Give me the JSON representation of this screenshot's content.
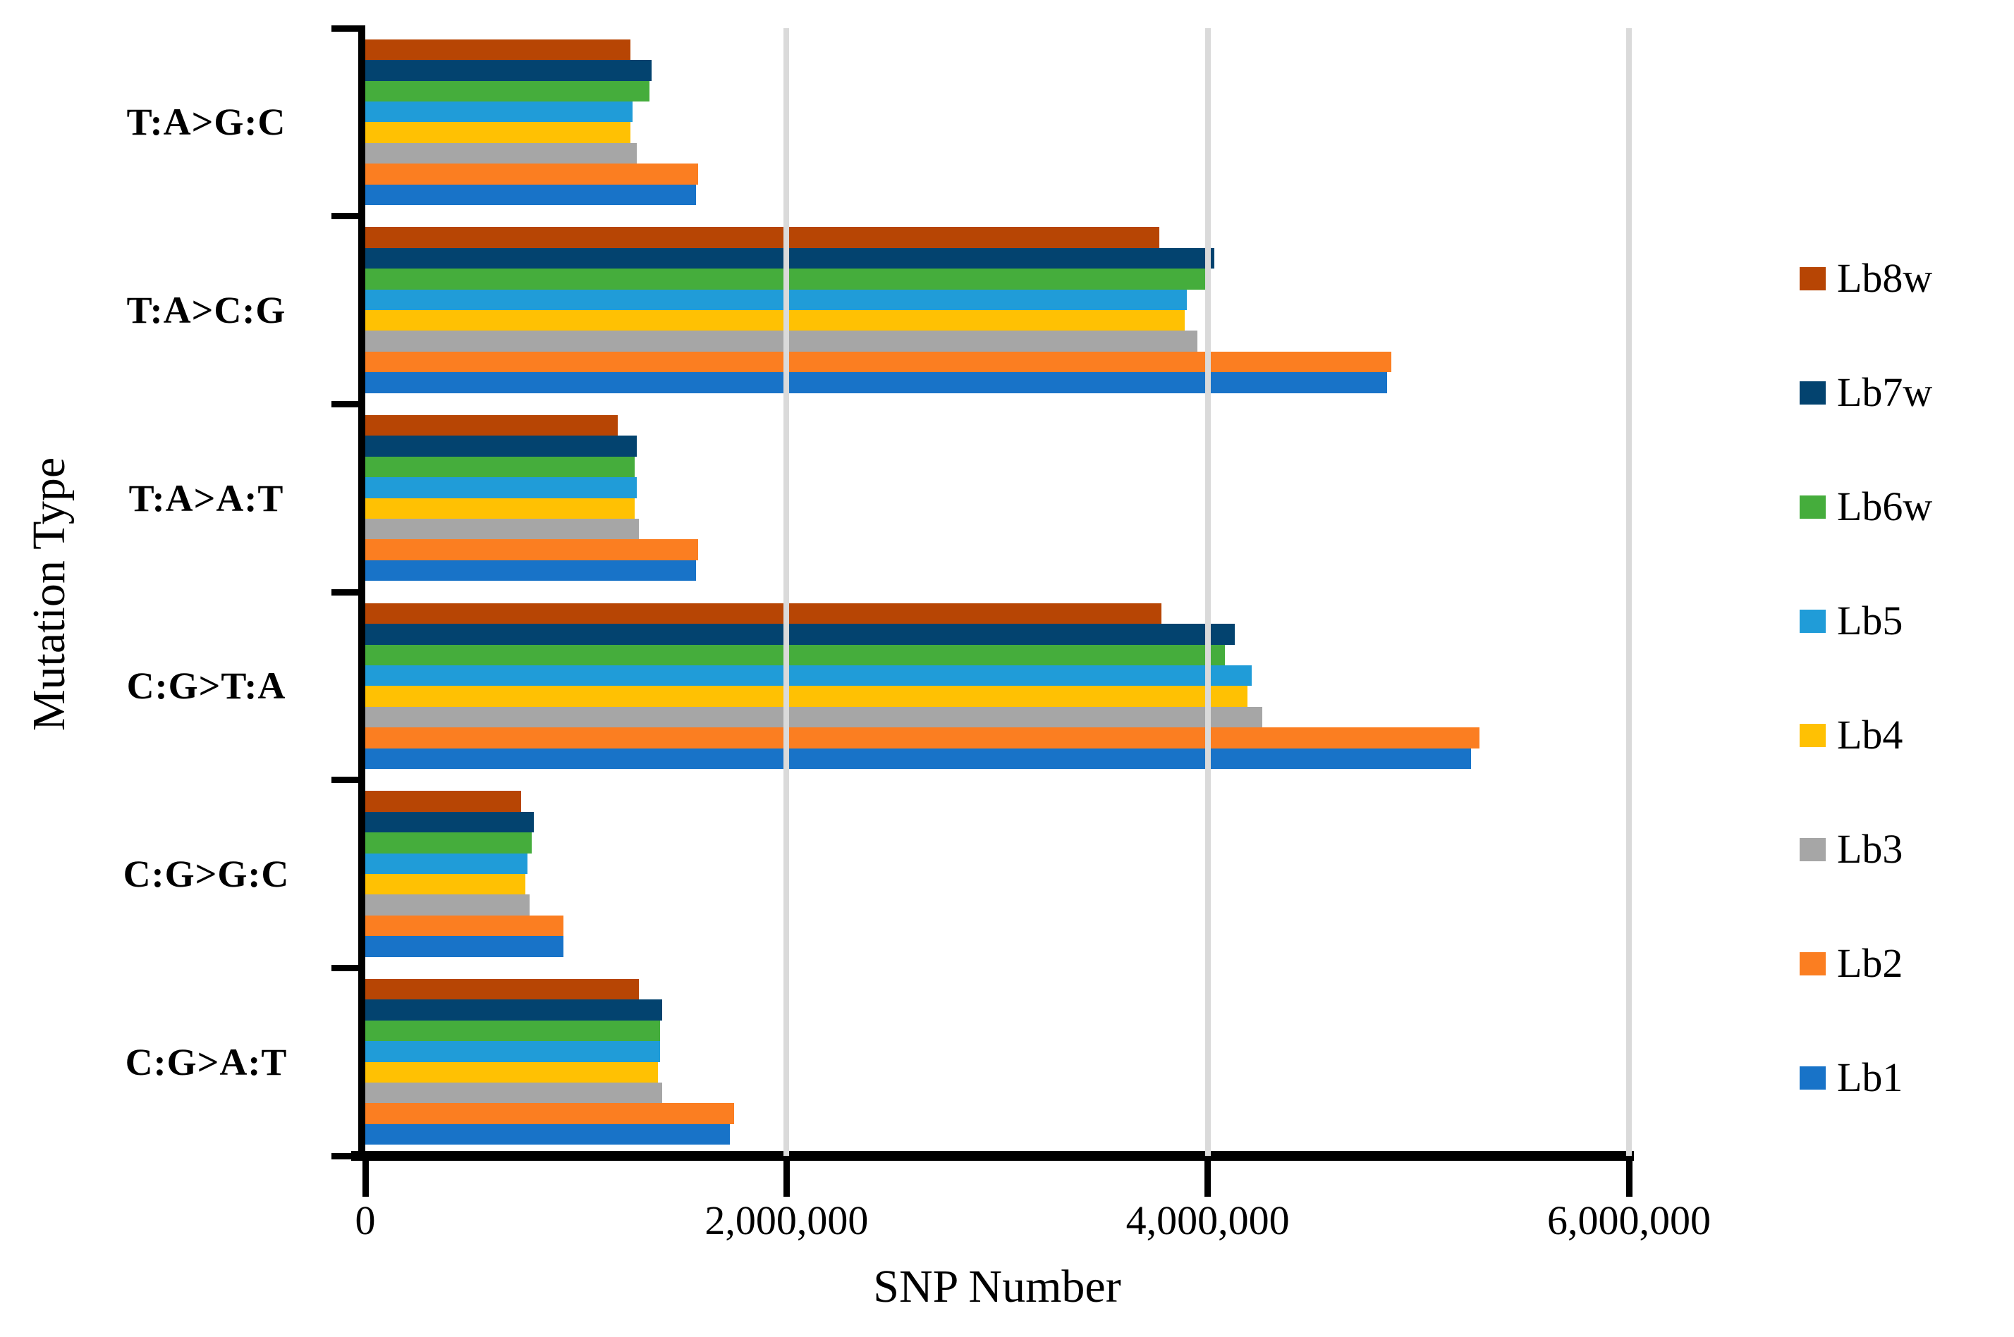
{
  "chart_data": {
    "type": "bar",
    "orientation": "horizontal",
    "title": "",
    "xlabel": "SNP Number",
    "ylabel": "Mutation Type",
    "categories": [
      "T:A&gt;G:C",
      "T:A&gt;C:G",
      "T:A&gt;A:T",
      "C:G&gt;T:A",
      "C:G&gt;G:C",
      "C:G&gt;A:T"
    ],
    "categories_plain": [
      "T:A>G:C",
      "T:A>C:G",
      "T:A>A:T",
      "C:G>T:A",
      "C:G>G:C",
      "C:G>A:T"
    ],
    "series": [
      {
        "name": "Lb8w",
        "color": "#b74504",
        "values": [
          1260000,
          3770000,
          1200000,
          3780000,
          740000,
          1300000
        ]
      },
      {
        "name": "Lb7w",
        "color": "#03436f",
        "values": [
          1360000,
          4030000,
          1290000,
          4130000,
          800000,
          1410000
        ]
      },
      {
        "name": "Lb6w",
        "color": "#45ad3c",
        "values": [
          1350000,
          4000000,
          1280000,
          4080000,
          790000,
          1400000
        ]
      },
      {
        "name": "Lb5",
        "color": "#209cd8",
        "values": [
          1270000,
          3900000,
          1290000,
          4210000,
          770000,
          1400000
        ]
      },
      {
        "name": "Lb4",
        "color": "#ffc103",
        "values": [
          1260000,
          3890000,
          1280000,
          4190000,
          760000,
          1390000
        ]
      },
      {
        "name": "Lb3",
        "color": "#a6a6a6",
        "values": [
          1290000,
          3950000,
          1300000,
          4260000,
          780000,
          1410000
        ]
      },
      {
        "name": "Lb2",
        "color": "#fb7e21",
        "values": [
          1580000,
          4870000,
          1580000,
          5290000,
          940000,
          1750000
        ]
      },
      {
        "name": "Lb1",
        "color": "#1873c8",
        "values": [
          1570000,
          4850000,
          1570000,
          5250000,
          940000,
          1730000
        ]
      }
    ],
    "xlim": [
      0,
      6000000
    ],
    "x_ticks": [
      0,
      2000000,
      4000000,
      6000000
    ],
    "x_tick_labels": [
      "0",
      "2,000,000",
      "4,000,000",
      "6,000,000"
    ],
    "grid": "vertical-gridlines-on",
    "gridline_color": "#dadada",
    "axis_color": "#000000",
    "legend_position": "right",
    "legend_order_top_to_bottom": [
      "Lb8w",
      "Lb7w",
      "Lb6w",
      "Lb5",
      "Lb4",
      "Lb3",
      "Lb2",
      "Lb1"
    ]
  }
}
